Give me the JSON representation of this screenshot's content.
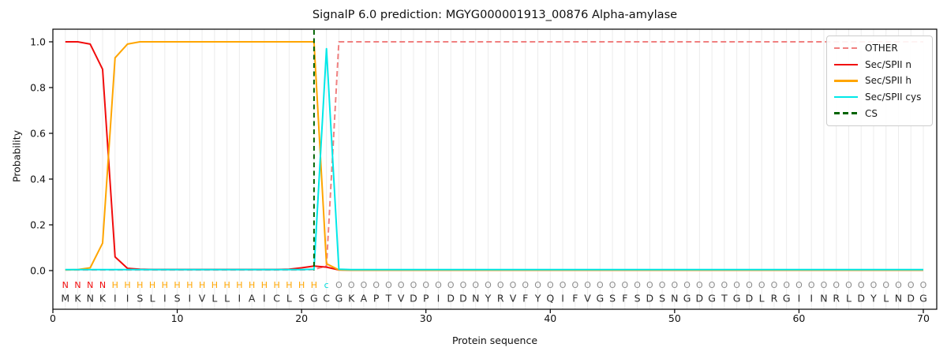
{
  "title": "SignalP 6.0 prediction: MGYG000001913_00876 Alpha-amylase",
  "chart_data": {
    "type": "line",
    "title": "SignalP 6.0 prediction: MGYG000001913_00876 Alpha-amylase",
    "xlabel": "Protein sequence",
    "ylabel": "Probability",
    "xlim": [
      0,
      71.1
    ],
    "ylim": [
      -0.17,
      1.06
    ],
    "grid": "vertical-per-residue",
    "legend_position": "upper right",
    "xticks": [
      0,
      10,
      20,
      30,
      40,
      50,
      60,
      70
    ],
    "yticks": [
      "0.0",
      "0.2",
      "0.4",
      "0.6",
      "0.8",
      "1.0"
    ],
    "x_positions": "residues 1-70",
    "series": [
      {
        "name": "OTHER",
        "color": "#F08080",
        "dash": "7 4",
        "values": [
          0.003,
          0.003,
          0.003,
          0.003,
          0.003,
          0.003,
          0.003,
          0.003,
          0.003,
          0.003,
          0.003,
          0.003,
          0.003,
          0.003,
          0.003,
          0.003,
          0.003,
          0.003,
          0.003,
          0.003,
          0.005,
          0.02,
          1,
          1,
          1,
          1,
          1,
          1,
          1,
          1,
          1,
          1,
          1,
          1,
          1,
          1,
          1,
          1,
          1,
          1,
          1,
          1,
          1,
          1,
          1,
          1,
          1,
          1,
          1,
          1,
          1,
          1,
          1,
          1,
          1,
          1,
          1,
          1,
          1,
          1,
          1,
          1,
          1,
          1,
          1,
          1,
          1,
          1,
          1,
          1
        ]
      },
      {
        "name": "Sec/SPII n",
        "color": "#F10C0C",
        "values": [
          1,
          1,
          0.99,
          0.88,
          0.06,
          0.01,
          0.006,
          0.005,
          0.005,
          0.005,
          0.005,
          0.005,
          0.005,
          0.005,
          0.005,
          0.005,
          0.005,
          0.005,
          0.006,
          0.012,
          0.02,
          0.015,
          0.003,
          0.002,
          0.002,
          0.002,
          0.002,
          0.002,
          0.002,
          0.002,
          0.002,
          0.002,
          0.002,
          0.002,
          0.002,
          0.002,
          0.002,
          0.002,
          0.002,
          0.002,
          0.002,
          0.002,
          0.002,
          0.002,
          0.002,
          0.002,
          0.002,
          0.002,
          0.002,
          0.002,
          0.002,
          0.002,
          0.002,
          0.002,
          0.002,
          0.002,
          0.002,
          0.002,
          0.002,
          0.002,
          0.002,
          0.002,
          0.002,
          0.002,
          0.002,
          0.002,
          0.002,
          0.002,
          0.002,
          0.002
        ]
      },
      {
        "name": "Sec/SPII h",
        "color": "#FFA500",
        "values": [
          0.003,
          0.004,
          0.012,
          0.12,
          0.93,
          0.99,
          1,
          1,
          1,
          1,
          1,
          1,
          1,
          1,
          1,
          1,
          1,
          1,
          1,
          1,
          1,
          0.03,
          0.003,
          0.002,
          0.002,
          0.002,
          0.002,
          0.002,
          0.002,
          0.002,
          0.002,
          0.002,
          0.002,
          0.002,
          0.002,
          0.002,
          0.002,
          0.002,
          0.002,
          0.002,
          0.002,
          0.002,
          0.002,
          0.002,
          0.002,
          0.002,
          0.002,
          0.002,
          0.002,
          0.002,
          0.002,
          0.002,
          0.002,
          0.002,
          0.002,
          0.002,
          0.002,
          0.002,
          0.002,
          0.002,
          0.002,
          0.002,
          0.002,
          0.002,
          0.002,
          0.002,
          0.002,
          0.002,
          0.002,
          0.002
        ]
      },
      {
        "name": "Sec/SPII cys",
        "color": "#00E8E8",
        "values": [
          0.004,
          0.004,
          0.004,
          0.004,
          0.004,
          0.004,
          0.004,
          0.004,
          0.004,
          0.004,
          0.004,
          0.004,
          0.004,
          0.004,
          0.004,
          0.004,
          0.004,
          0.004,
          0.004,
          0.004,
          0.006,
          0.97,
          0.006,
          0.004,
          0.004,
          0.004,
          0.004,
          0.004,
          0.004,
          0.004,
          0.004,
          0.004,
          0.004,
          0.004,
          0.004,
          0.004,
          0.004,
          0.004,
          0.004,
          0.004,
          0.004,
          0.004,
          0.004,
          0.004,
          0.004,
          0.004,
          0.004,
          0.004,
          0.004,
          0.004,
          0.004,
          0.004,
          0.004,
          0.004,
          0.004,
          0.004,
          0.004,
          0.004,
          0.004,
          0.004,
          0.004,
          0.004,
          0.004,
          0.004,
          0.004,
          0.004,
          0.004,
          0.004,
          0.004,
          0.004
        ]
      }
    ],
    "cs_line": {
      "name": "CS",
      "x": 21,
      "color": "#006400",
      "dash": "6 4.5"
    },
    "sequence": "MKNKIISLISIVLLIAICLSGCGKAPTVDPIDDNYRVFYQIFVGSFSDSNGDGTGDLRGIINRLDYLNDG",
    "region_labels": "NNNNHHHHHHHHHHHHHHHHHcOOOOOOOOOOOOOOOOOOOOOOOOOOOOOOOOOOOOOOOOOOOOOOOO",
    "label_colors": {
      "N": "#F10C0C",
      "H": "#FFA500",
      "c": "#00DCDC",
      "O": "#8C8C8C"
    },
    "sequence_color": "#2a2a2a"
  },
  "legend": {
    "items": [
      {
        "label": "OTHER",
        "color": "#F08080",
        "dashed": true
      },
      {
        "label": "Sec/SPII n",
        "color": "#F10C0C",
        "dashed": false
      },
      {
        "label": "Sec/SPII h",
        "color": "#FFA500",
        "dashed": false
      },
      {
        "label": "Sec/SPII cys",
        "color": "#00E8E8",
        "dashed": false
      },
      {
        "label": "CS",
        "color": "#006400",
        "dashed": true
      }
    ]
  }
}
